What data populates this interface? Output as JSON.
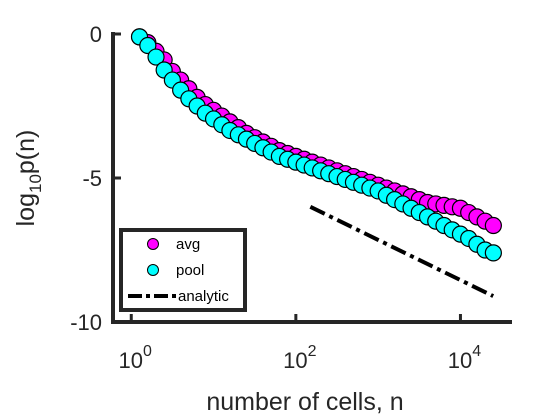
{
  "chart_data": {
    "type": "scatter",
    "xlabel": "number of cells, n",
    "ylabel_base": "log",
    "ylabel_sub": "10",
    "ylabel_tail": "p(n)",
    "x_scale": "log",
    "xlim": [
      0.6,
      40000
    ],
    "ylim": [
      -10,
      0
    ],
    "xticks": [
      1,
      100,
      10000
    ],
    "xtick_labels": [
      {
        "base": "10",
        "exp": "0"
      },
      {
        "base": "10",
        "exp": "2"
      },
      {
        "base": "10",
        "exp": "4"
      }
    ],
    "yticks": [
      0,
      -5,
      -10
    ],
    "ytick_labels": [
      "0",
      "-5",
      "-10"
    ],
    "grid": false,
    "legend_position": "bottom-left",
    "series": [
      {
        "name": "avg",
        "color": "#ff00ff",
        "marker": "circle",
        "x": [
          1.26,
          1.59,
          2.0,
          2.51,
          3.16,
          3.98,
          5.01,
          6.31,
          7.94,
          10.0,
          12.6,
          15.8,
          20.0,
          25.1,
          31.6,
          39.8,
          50.1,
          63.1,
          79.4,
          100,
          126,
          158,
          200,
          251,
          316,
          398,
          501,
          631,
          794,
          1000,
          1259,
          1585,
          1995,
          2512,
          3162,
          3981,
          5012,
          6310,
          7943,
          10000,
          12589,
          15849,
          19953,
          25119
        ],
        "y": [
          -0.1,
          -0.3,
          -0.6,
          -0.9,
          -1.3,
          -1.6,
          -1.9,
          -2.2,
          -2.45,
          -2.65,
          -2.85,
          -3.05,
          -3.25,
          -3.45,
          -3.6,
          -3.75,
          -3.9,
          -4.05,
          -4.15,
          -4.25,
          -4.35,
          -4.45,
          -4.55,
          -4.65,
          -4.75,
          -4.85,
          -4.95,
          -5.05,
          -5.15,
          -5.25,
          -5.35,
          -5.45,
          -5.55,
          -5.65,
          -5.75,
          -5.85,
          -5.9,
          -5.95,
          -6.0,
          -6.05,
          -6.2,
          -6.35,
          -6.5,
          -6.65
        ]
      },
      {
        "name": "pool",
        "color": "#00ffff",
        "marker": "circle",
        "x": [
          1.26,
          1.59,
          2.0,
          2.51,
          3.16,
          3.98,
          5.01,
          6.31,
          7.94,
          10.0,
          12.6,
          15.8,
          20.0,
          25.1,
          31.6,
          39.8,
          50.1,
          63.1,
          79.4,
          100,
          126,
          158,
          200,
          251,
          316,
          398,
          501,
          631,
          794,
          1000,
          1259,
          1585,
          1995,
          2512,
          3162,
          3981,
          5012,
          6310,
          7943,
          10000,
          12589,
          15849,
          19953,
          25119
        ],
        "y": [
          -0.1,
          -0.4,
          -0.8,
          -1.25,
          -1.6,
          -1.95,
          -2.25,
          -2.5,
          -2.75,
          -2.95,
          -3.15,
          -3.35,
          -3.5,
          -3.65,
          -3.8,
          -3.95,
          -4.1,
          -4.25,
          -4.35,
          -4.45,
          -4.55,
          -4.65,
          -4.75,
          -4.85,
          -4.95,
          -5.05,
          -5.15,
          -5.25,
          -5.35,
          -5.45,
          -5.6,
          -5.75,
          -5.9,
          -6.05,
          -6.2,
          -6.35,
          -6.5,
          -6.65,
          -6.8,
          -6.95,
          -7.1,
          -7.3,
          -7.5,
          -7.6
        ]
      },
      {
        "name": "analytic",
        "color": "#000000",
        "marker": "none",
        "line_style": "dash-dot",
        "x": [
          150,
          25000
        ],
        "y": [
          -6.0,
          -9.1
        ]
      }
    ]
  }
}
